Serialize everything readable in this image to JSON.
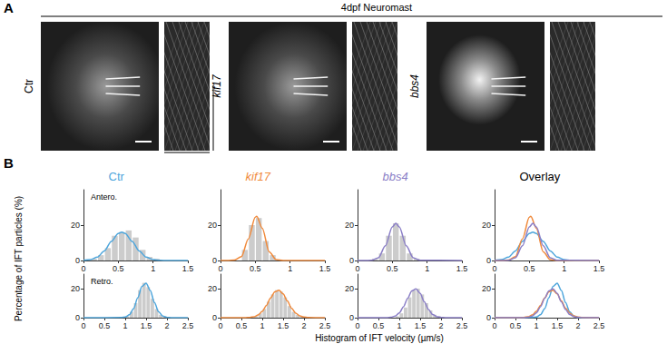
{
  "figure": {
    "panel_a": {
      "label": "A",
      "title": "4dpf Neuromast",
      "images": [
        "Ctr",
        "kif17",
        "bbs4"
      ]
    },
    "panel_b": {
      "label": "B",
      "columns": [
        {
          "title": "Ctr",
          "color": "#4ea6dc"
        },
        {
          "title": "kif17",
          "color": "#f08a3c"
        },
        {
          "title": "bbs4",
          "color": "#8b7fc7"
        },
        {
          "title": "Overlay",
          "color": "#000000"
        }
      ],
      "rows": [
        "Antero.",
        "Retro."
      ],
      "ylabel": "Percentage of IFT particles (%)",
      "xlabel": "Histogram of IFT velocity (µm/s)"
    }
  },
  "chart_data": [
    {
      "type": "histogram",
      "grid": false,
      "color": "#cccccc",
      "bins": [
        0,
        0.1,
        0.2,
        0.3,
        0.4,
        0.5,
        0.6,
        0.7,
        0.8,
        0.9,
        1,
        1.1,
        1.2,
        1.3,
        1.4,
        1.5
      ],
      "counts": [
        0,
        1,
        3,
        7,
        14,
        16,
        17,
        13,
        6,
        2,
        1,
        0,
        0,
        0,
        0
      ],
      "fit": {
        "color": "#4ea6dc",
        "x": [
          0,
          0.1,
          0.2,
          0.3,
          0.4,
          0.5,
          0.55,
          0.6,
          0.7,
          0.8,
          0.9,
          1,
          1.1,
          1.2,
          1.5
        ],
        "y": [
          0.1,
          0.5,
          1.9,
          5.4,
          10.8,
          15.3,
          16,
          15.3,
          10.8,
          5.4,
          1.9,
          0.5,
          0.1,
          0,
          0
        ]
      },
      "xlim": [
        0,
        1.5
      ],
      "xticks": [
        0,
        0.5,
        1,
        1.5
      ],
      "ylim": [
        0,
        40
      ],
      "yticks": [
        0,
        20
      ]
    },
    {
      "type": "histogram",
      "grid": false,
      "color": "#cccccc",
      "bins": [
        0,
        0.1,
        0.2,
        0.3,
        0.4,
        0.5,
        0.6,
        0.7,
        0.8,
        0.9,
        1,
        1.1,
        1.2,
        1.3,
        1.4,
        1.5
      ],
      "counts": [
        0,
        0,
        0,
        6,
        20,
        24,
        11,
        3,
        0,
        0,
        0,
        0,
        0,
        0,
        0
      ],
      "fit": {
        "color": "#f08a3c",
        "x": [
          0,
          0.1,
          0.2,
          0.3,
          0.4,
          0.5,
          0.52,
          0.6,
          0.7,
          0.8,
          0.9,
          1.5
        ],
        "y": [
          0,
          0,
          0.2,
          2.2,
          12.2,
          24.5,
          25,
          18.2,
          4.9,
          0.5,
          0,
          0
        ]
      },
      "xlim": [
        0,
        1.5
      ],
      "xticks": [
        0,
        0.5,
        1,
        1.5
      ],
      "ylim": [
        0,
        40
      ],
      "yticks": [
        0,
        20
      ]
    },
    {
      "type": "histogram",
      "grid": false,
      "color": "#cccccc",
      "bins": [
        0,
        0.1,
        0.2,
        0.3,
        0.4,
        0.5,
        0.6,
        0.7,
        0.8,
        0.9,
        1,
        1.1,
        1.2,
        1.3,
        1.4,
        1.5
      ],
      "counts": [
        0,
        0,
        1,
        4,
        14,
        21,
        14,
        4,
        1,
        0,
        0,
        0,
        0,
        0,
        0
      ],
      "fit": {
        "color": "#8b7fc7",
        "x": [
          0,
          0.1,
          0.2,
          0.3,
          0.4,
          0.5,
          0.55,
          0.6,
          0.7,
          0.8,
          0.9,
          1.5
        ],
        "y": [
          0,
          0,
          0.1,
          1.6,
          8.3,
          19,
          21,
          19,
          8.3,
          1.6,
          0.1,
          0
        ]
      },
      "xlim": [
        0,
        1.5
      ],
      "xticks": [
        0,
        0.5,
        1,
        1.5
      ],
      "ylim": [
        0,
        40
      ],
      "yticks": [
        0,
        20
      ]
    },
    {
      "type": "line",
      "grid": false,
      "series": [
        {
          "color": "#4ea6dc",
          "x": [
            0,
            0.1,
            0.2,
            0.3,
            0.4,
            0.5,
            0.55,
            0.6,
            0.7,
            0.8,
            0.9,
            1,
            1.1,
            1.2,
            1.5
          ],
          "y": [
            0.1,
            0.5,
            1.9,
            5.4,
            10.8,
            15.3,
            16,
            15.3,
            10.8,
            5.4,
            1.9,
            0.5,
            0.1,
            0,
            0
          ]
        },
        {
          "color": "#f08a3c",
          "x": [
            0,
            0.1,
            0.2,
            0.3,
            0.4,
            0.5,
            0.52,
            0.6,
            0.7,
            0.8,
            0.9,
            1.5
          ],
          "y": [
            0,
            0,
            0.2,
            2.2,
            12.2,
            24.5,
            25,
            18.2,
            4.9,
            0.5,
            0,
            0
          ]
        },
        {
          "color": "#8b7fc7",
          "x": [
            0,
            0.1,
            0.2,
            0.3,
            0.4,
            0.5,
            0.55,
            0.6,
            0.7,
            0.8,
            0.9,
            1.5
          ],
          "y": [
            0,
            0,
            0.1,
            1.6,
            8.3,
            19,
            21,
            19,
            8.3,
            1.6,
            0.1,
            0
          ]
        }
      ],
      "xlim": [
        0,
        1.5
      ],
      "xticks": [
        0,
        0.5,
        1,
        1.5
      ],
      "ylim": [
        0,
        40
      ],
      "yticks": [
        0,
        20
      ]
    },
    {
      "type": "histogram",
      "grid": false,
      "color": "#cccccc",
      "bins": [
        0,
        0.1,
        0.2,
        0.3,
        0.4,
        0.5,
        0.6,
        0.7,
        0.8,
        0.9,
        1,
        1.1,
        1.2,
        1.3,
        1.4,
        1.5,
        1.6,
        1.7,
        1.8,
        1.9,
        2,
        2.1,
        2.2,
        2.3,
        2.4,
        2.5
      ],
      "counts": [
        0,
        0,
        0,
        0,
        0,
        0,
        0,
        0,
        0,
        0,
        1,
        4,
        10,
        19,
        24,
        21,
        13,
        6,
        2,
        1,
        0,
        0,
        0,
        0,
        0
      ],
      "fit": {
        "color": "#4ea6dc",
        "x": [
          0,
          0.9,
          1,
          1.1,
          1.2,
          1.3,
          1.4,
          1.5,
          1.6,
          1.7,
          1.8,
          1.9,
          2,
          2.1,
          2.5
        ],
        "y": [
          0,
          0.1,
          0.4,
          2,
          6.2,
          13.7,
          21.5,
          23.8,
          18.7,
          10.4,
          4.1,
          1.1,
          0.2,
          0,
          0
        ]
      },
      "xlim": [
        0,
        2.5
      ],
      "xticks": [
        0,
        0.5,
        1,
        1.5,
        2,
        2.5
      ],
      "ylim": [
        0,
        30
      ],
      "yticks": [
        0,
        20
      ]
    },
    {
      "type": "histogram",
      "grid": false,
      "color": "#cccccc",
      "bins": [
        0,
        0.1,
        0.2,
        0.3,
        0.4,
        0.5,
        0.6,
        0.7,
        0.8,
        0.9,
        1,
        1.1,
        1.2,
        1.3,
        1.4,
        1.5,
        1.6,
        1.7,
        1.8,
        1.9,
        2,
        2.1,
        2.2,
        2.3,
        2.4,
        2.5
      ],
      "counts": [
        0,
        0,
        0,
        0,
        0,
        0,
        0,
        0,
        1,
        3,
        6,
        11,
        16,
        19,
        18,
        14,
        8,
        4,
        2,
        1,
        0,
        0,
        0,
        0,
        0
      ],
      "fit": {
        "color": "#f08a3c",
        "x": [
          0,
          0.6,
          0.7,
          0.8,
          0.9,
          1,
          1.1,
          1.2,
          1.3,
          1.4,
          1.5,
          1.6,
          1.7,
          1.8,
          1.9,
          2,
          2.1,
          2.5
        ],
        "y": [
          0,
          0,
          0.2,
          0.6,
          1.8,
          4.3,
          8.5,
          13.6,
          17.8,
          18.9,
          16.4,
          11.5,
          6.6,
          3.1,
          1.2,
          0.4,
          0.1,
          0
        ]
      },
      "xlim": [
        0,
        2.5
      ],
      "xticks": [
        0,
        0.5,
        1,
        1.5,
        2,
        2.5
      ],
      "ylim": [
        0,
        30
      ],
      "yticks": [
        0,
        20
      ]
    },
    {
      "type": "histogram",
      "grid": false,
      "color": "#cccccc",
      "bins": [
        0,
        0.1,
        0.2,
        0.3,
        0.4,
        0.5,
        0.6,
        0.7,
        0.8,
        0.9,
        1,
        1.1,
        1.2,
        1.3,
        1.4,
        1.5,
        1.6,
        1.7,
        1.8,
        1.9,
        2,
        2.1,
        2.2,
        2.3,
        2.4,
        2.5
      ],
      "counts": [
        0,
        0,
        0,
        0,
        0,
        0,
        0,
        0,
        0,
        1,
        3,
        7,
        14,
        19,
        20,
        16,
        10,
        5,
        2,
        1,
        0,
        0,
        0,
        0,
        0
      ],
      "fit": {
        "color": "#8b7fc7",
        "x": [
          0,
          0.7,
          0.8,
          0.9,
          1,
          1.1,
          1.2,
          1.3,
          1.4,
          1.5,
          1.6,
          1.7,
          1.8,
          1.9,
          2,
          2.1,
          2.5
        ],
        "y": [
          0,
          0,
          0.3,
          1.1,
          3.3,
          7.5,
          13.3,
          18.5,
          19.9,
          16.7,
          10.9,
          5.6,
          2.2,
          0.7,
          0.2,
          0,
          0
        ]
      },
      "xlim": [
        0,
        2.5
      ],
      "xticks": [
        0,
        0.5,
        1,
        1.5,
        2,
        2.5
      ],
      "ylim": [
        0,
        30
      ],
      "yticks": [
        0,
        20
      ]
    },
    {
      "type": "line",
      "grid": false,
      "series": [
        {
          "color": "#4ea6dc",
          "x": [
            0,
            0.9,
            1,
            1.1,
            1.2,
            1.3,
            1.4,
            1.5,
            1.6,
            1.7,
            1.8,
            1.9,
            2,
            2.1,
            2.5
          ],
          "y": [
            0,
            0.1,
            0.4,
            2,
            6.2,
            13.7,
            21.5,
            23.8,
            18.7,
            10.4,
            4.1,
            1.1,
            0.2,
            0,
            0
          ]
        },
        {
          "color": "#f08a3c",
          "x": [
            0,
            0.6,
            0.7,
            0.8,
            0.9,
            1,
            1.1,
            1.2,
            1.3,
            1.4,
            1.5,
            1.6,
            1.7,
            1.8,
            1.9,
            2,
            2.1,
            2.5
          ],
          "y": [
            0,
            0,
            0.2,
            0.6,
            1.8,
            4.3,
            8.5,
            13.6,
            17.8,
            18.9,
            16.4,
            11.5,
            6.6,
            3.1,
            1.2,
            0.4,
            0.1,
            0
          ]
        },
        {
          "color": "#8b7fc7",
          "x": [
            0,
            0.7,
            0.8,
            0.9,
            1,
            1.1,
            1.2,
            1.3,
            1.4,
            1.5,
            1.6,
            1.7,
            1.8,
            1.9,
            2,
            2.1,
            2.5
          ],
          "y": [
            0,
            0,
            0.3,
            1.1,
            3.3,
            7.5,
            13.3,
            18.5,
            19.9,
            16.7,
            10.9,
            5.6,
            2.2,
            0.7,
            0.2,
            0,
            0
          ]
        }
      ],
      "xlim": [
        0,
        2.5
      ],
      "xticks": [
        0,
        0.5,
        1,
        1.5,
        2,
        2.5
      ],
      "ylim": [
        0,
        30
      ],
      "yticks": [
        0,
        20
      ]
    }
  ]
}
